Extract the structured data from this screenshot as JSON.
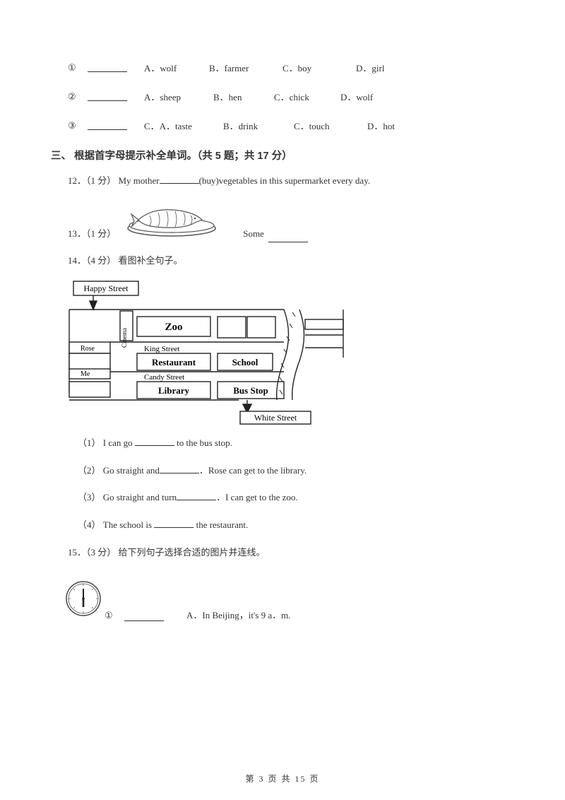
{
  "mcRows": [
    {
      "num": "①",
      "opts": [
        "A．wolf",
        "B．farmer",
        "C．boy",
        "D．girl"
      ],
      "widths": [
        92,
        104,
        104,
        80
      ]
    },
    {
      "num": "②",
      "opts": [
        "A．sheep",
        "B．hen",
        "C．chick",
        "D．wolf"
      ],
      "widths": [
        98,
        86,
        94,
        80
      ]
    },
    {
      "num": "③",
      "opts": [
        "C．A．taste",
        "B．drink",
        "C．touch",
        "D．hot"
      ],
      "widths": [
        112,
        100,
        104,
        80
      ]
    }
  ],
  "section3": {
    "title": "三、 根据首字母提示补全单词。（共 5 题；共 17 分）"
  },
  "q12": {
    "prefix": "12．（1 分） My mother",
    "suffix": "(buy)vegetables in this supermarket every day."
  },
  "q13": {
    "prefix": "13．（1 分）",
    "mid": "Some"
  },
  "q14": {
    "title": "14．（4 分） 看图补全句子。",
    "sub": [
      {
        "parts": [
          "（1） I can go ",
          " to the bus stop."
        ]
      },
      {
        "parts": [
          "（2） Go straight and",
          "．Rose can get to the library."
        ]
      },
      {
        "parts": [
          "（3） Go straight and turn",
          "．I can get to the zoo."
        ]
      },
      {
        "parts": [
          "（4） The school is ",
          " the restaurant."
        ]
      }
    ]
  },
  "q15": {
    "title": "15．（3 分） 给下列句子选择合适的图片并连线。",
    "row1": {
      "num": "①",
      "opt": "A．In Beijing，it's 9 a．m."
    }
  },
  "map": {
    "labels": {
      "happy": "Happy Street",
      "cinema": "Cinema",
      "zoo": "Zoo",
      "rose": "Rose",
      "king": "King Street",
      "restaurant": "Restaurant",
      "school": "School",
      "me": "Me",
      "candy": "Candy Street",
      "library": "Library",
      "busstop": "Bus Stop",
      "white": "White Street"
    }
  },
  "footer": "第 3 页 共 15 页"
}
